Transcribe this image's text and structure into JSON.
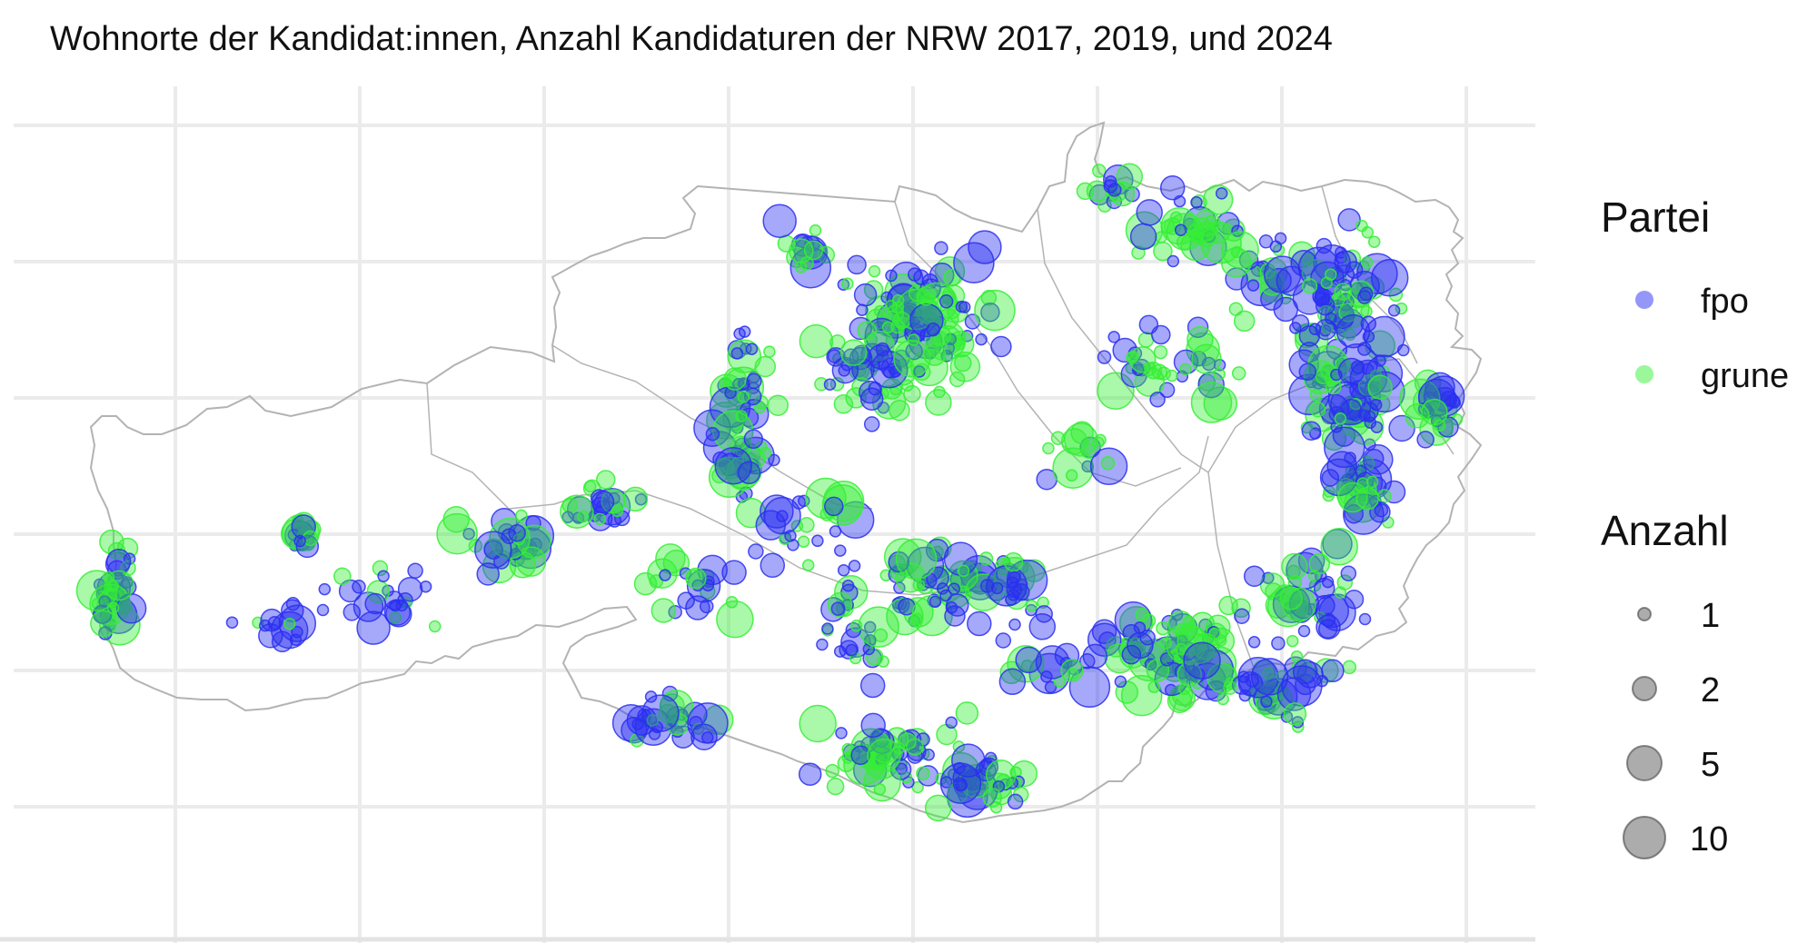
{
  "title": "Wohnorte der Kandidat:innen, Anzahl Kandidaturen der NRW 2017, 2019, und 2024",
  "colors": {
    "fpo": "#2a2ff0",
    "grune": "#35ef35",
    "grid": "#ebebeb",
    "border": "#b3b3b3",
    "legend_size": "#7f7f7f"
  },
  "legend": {
    "color_title": "Partei",
    "color_items": [
      {
        "label": "fpo",
        "color": "#2a2ff0"
      },
      {
        "label": "grune",
        "color": "#35ef35"
      }
    ],
    "size_title": "Anzahl",
    "size_items": [
      "1",
      "2",
      "5",
      "10"
    ]
  },
  "chart_data": {
    "type": "scatter",
    "encoding": "bubble map; color = Partei, area = Anzahl",
    "series": [
      {
        "name": "fpo"
      },
      {
        "name": "grune"
      }
    ],
    "size_breaks": [
      1,
      2,
      5,
      10
    ],
    "grid": true
  }
}
